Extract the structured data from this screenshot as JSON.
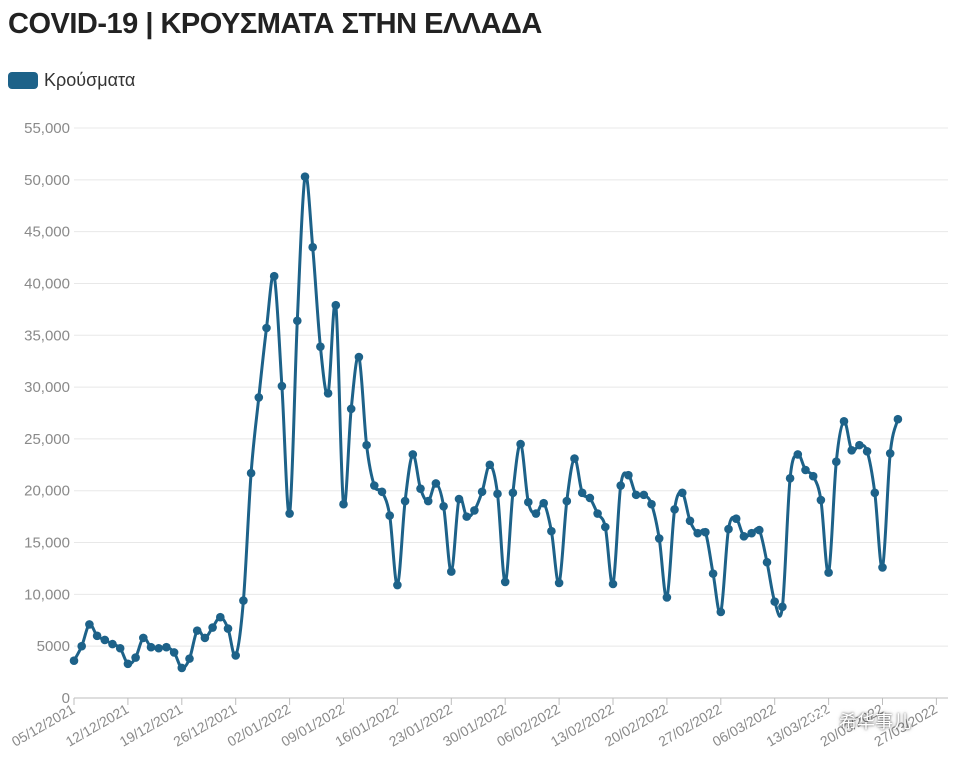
{
  "header": {
    "title": "COVID-19 | ΚΡΟΥΣΜΑΤΑ ΣΤΗΝ ΕΛΛΑΔΑ"
  },
  "legend": {
    "label": "Κρούσματα",
    "color": "#1d6289"
  },
  "watermark": {
    "text": "希华事儿",
    "icon": "wechat-icon"
  },
  "chart_data": {
    "type": "line",
    "title": "COVID-19 | ΚΡΟΥΣΜΑΤΑ ΣΤΗΝ ΕΛΛΑΔΑ",
    "xlabel": "",
    "ylabel": "",
    "ylim": [
      0,
      55000
    ],
    "y_ticks": [
      0,
      5000,
      10000,
      15000,
      20000,
      25000,
      30000,
      35000,
      40000,
      45000,
      50000,
      55000
    ],
    "y_tick_labels": [
      "0",
      "5000",
      "10,000",
      "15,000",
      "20,000",
      "25,000",
      "30,000",
      "35,000",
      "40,000",
      "45,000",
      "50,000",
      "55,000"
    ],
    "x_tick_labels": [
      "05/12/2021",
      "12/12/2021",
      "19/12/2021",
      "26/12/2021",
      "02/01/2022",
      "09/01/2022",
      "16/01/2022",
      "23/01/2022",
      "30/01/2022",
      "06/02/2022",
      "13/02/2022",
      "20/02/2022",
      "27/02/2022",
      "06/03/2022",
      "13/03/2022",
      "20/03/2022",
      "27/03/2022"
    ],
    "grid": true,
    "legend_position": "top-left",
    "series": [
      {
        "name": "Κρούσματα",
        "color": "#1d6289",
        "start_date": "05/12/2021",
        "values": [
          3600,
          5000,
          7100,
          6000,
          5600,
          5200,
          4800,
          3300,
          3900,
          5800,
          4900,
          4800,
          4900,
          4400,
          2900,
          3800,
          6500,
          5800,
          6800,
          7800,
          6700,
          4100,
          9400,
          21700,
          29000,
          35700,
          40700,
          30100,
          17800,
          36400,
          50300,
          43500,
          33900,
          29400,
          37900,
          18700,
          27900,
          32900,
          24400,
          20500,
          19900,
          17600,
          10900,
          19000,
          23500,
          20200,
          19000,
          20700,
          18500,
          12200,
          19200,
          17500,
          18100,
          19900,
          22500,
          19700,
          11200,
          19800,
          24500,
          18900,
          17800,
          18800,
          16100,
          11100,
          19000,
          23100,
          19800,
          19300,
          17800,
          16500,
          11000,
          20500,
          21500,
          19600,
          19600,
          18700,
          15400,
          9700,
          18200,
          19800,
          17100,
          15900,
          16000,
          12000,
          8300,
          16300,
          17300,
          15600,
          15900,
          16200,
          13100,
          9300,
          8800,
          21200,
          23500,
          22000,
          21400,
          19100,
          12100,
          22800,
          26700,
          23900,
          24400,
          23800,
          19800,
          12600,
          23600,
          26900
        ]
      }
    ]
  }
}
